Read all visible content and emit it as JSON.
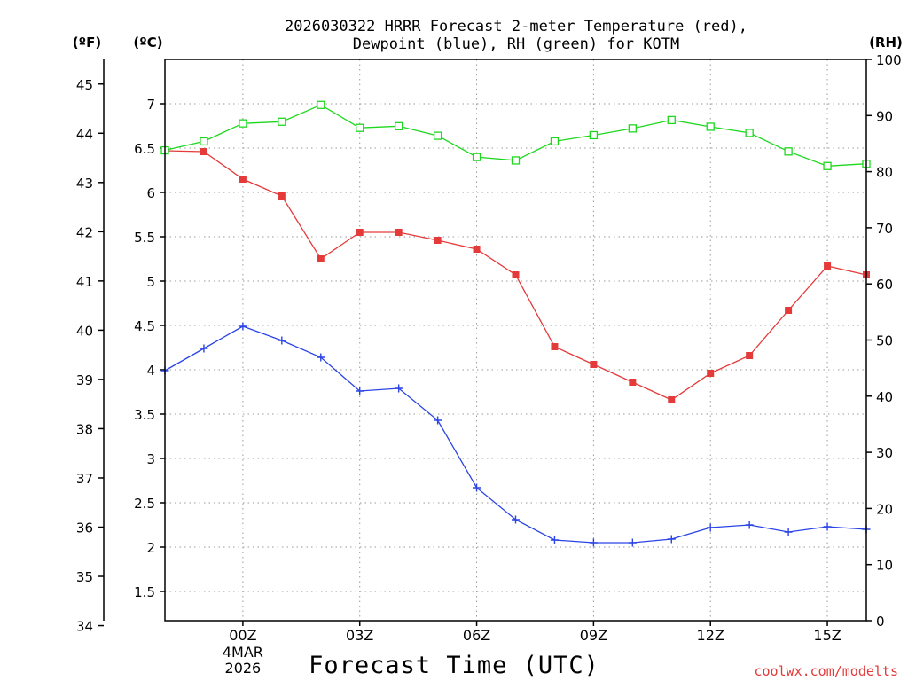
{
  "chart_data": {
    "type": "line",
    "title": [
      "2026030322 HRRR Forecast 2-meter Temperature (red),",
      "Dewpoint (blue), RH (green) for KOTM"
    ],
    "xlabel": "Forecast Time (UTC)",
    "x": [
      -2,
      -1,
      0,
      1,
      2,
      3,
      4,
      5,
      6,
      7,
      8,
      9,
      10,
      11,
      12,
      13,
      14,
      15,
      16
    ],
    "x_ticks": [
      {
        "x": 0,
        "label": "00Z",
        "sub": [
          "4MAR",
          "2026"
        ]
      },
      {
        "x": 3,
        "label": "03Z"
      },
      {
        "x": 6,
        "label": "06Z"
      },
      {
        "x": 9,
        "label": "09Z"
      },
      {
        "x": 12,
        "label": "12Z"
      },
      {
        "x": 15,
        "label": "15Z"
      }
    ],
    "xlim": [
      -2,
      16
    ],
    "left_axis_c": {
      "unit": "(ºC)",
      "lim": [
        1.17,
        7.5
      ],
      "ticks": [
        "1.5",
        "2",
        "2.5",
        "3",
        "3.5",
        "4",
        "4.5",
        "5",
        "5.5",
        "6",
        "6.5",
        "7"
      ]
    },
    "left_axis_f": {
      "unit": "(ºF)",
      "lim": [
        34.1,
        45.5
      ],
      "ticks": [
        "34",
        "35",
        "36",
        "37",
        "38",
        "39",
        "40",
        "41",
        "42",
        "43",
        "44",
        "45"
      ]
    },
    "right_axis": {
      "unit": "(RH)",
      "lim": [
        0,
        100
      ],
      "ticks": [
        "0",
        "10",
        "20",
        "30",
        "40",
        "50",
        "60",
        "70",
        "80",
        "90",
        "100"
      ]
    },
    "series": [
      {
        "name": "Temperature",
        "axis": "c",
        "color": "#e53a3a",
        "marker": "filled-square",
        "values": [
          6.47,
          6.46,
          6.15,
          5.96,
          5.25,
          5.55,
          5.55,
          5.46,
          5.36,
          5.07,
          4.26,
          4.06,
          3.86,
          3.66,
          3.96,
          4.16,
          4.67,
          5.17,
          5.07
        ]
      },
      {
        "name": "Dewpoint",
        "axis": "c",
        "color": "#2a44e6",
        "marker": "plus",
        "values": [
          3.99,
          4.24,
          4.49,
          4.33,
          4.14,
          3.76,
          3.79,
          3.43,
          2.67,
          2.31,
          2.08,
          2.05,
          2.05,
          2.09,
          2.22,
          2.25,
          2.17,
          2.23,
          2.2
        ]
      },
      {
        "name": "RH",
        "axis": "rh",
        "color": "#1ed81e",
        "marker": "open-square",
        "values": [
          83.8,
          85.4,
          88.6,
          88.9,
          91.9,
          87.8,
          88.1,
          86.4,
          82.6,
          82.0,
          85.4,
          86.5,
          87.7,
          89.2,
          88.0,
          86.9,
          83.6,
          81.0,
          81.4
        ]
      }
    ]
  },
  "credit": "coolwx.com/modelts"
}
